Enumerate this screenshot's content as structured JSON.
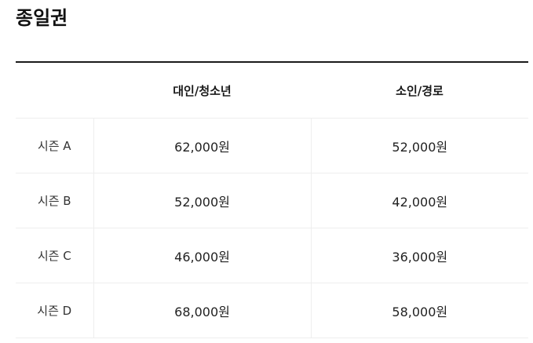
{
  "title": "종일권",
  "table": {
    "headers": [
      "",
      "대인/청소년",
      "소인/경로"
    ],
    "rows": [
      {
        "season": "시즌 A",
        "adult": "62,000원",
        "child": "52,000원"
      },
      {
        "season": "시즌 B",
        "adult": "52,000원",
        "child": "42,000원"
      },
      {
        "season": "시즌 C",
        "adult": "46,000원",
        "child": "36,000원"
      },
      {
        "season": "시즌 D",
        "adult": "68,000원",
        "child": "58,000원"
      }
    ]
  }
}
